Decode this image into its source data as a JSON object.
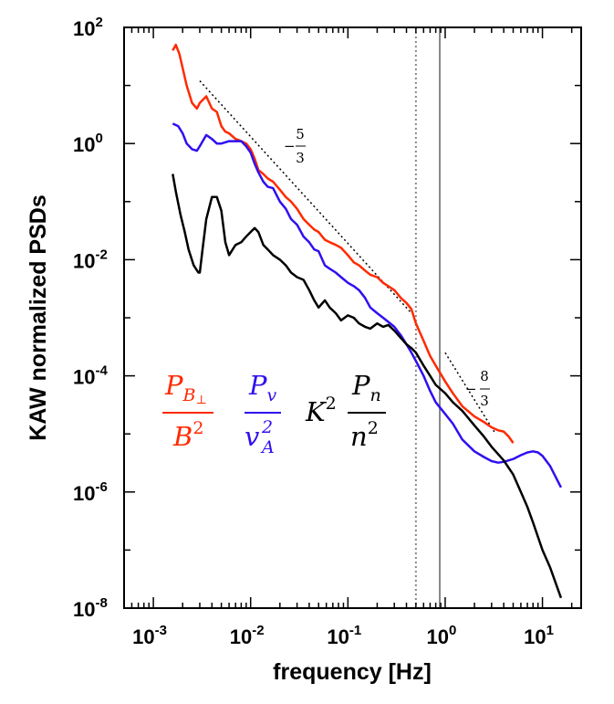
{
  "chart_data": {
    "type": "line",
    "x_scale": "log",
    "y_scale": "log",
    "xlabel": "frequency [Hz]",
    "ylabel": "KAW normalized PSDs",
    "xlim": [
      0.0005,
      25
    ],
    "ylim": [
      1e-08,
      100
    ],
    "x_ticks": [
      {
        "base": "10",
        "exp": "-3",
        "value": 0.001
      },
      {
        "base": "10",
        "exp": "-2",
        "value": 0.01
      },
      {
        "base": "10",
        "exp": "-1",
        "value": 0.1
      },
      {
        "base": "10",
        "exp": "0",
        "value": 1
      },
      {
        "base": "10",
        "exp": "1",
        "value": 10
      }
    ],
    "y_ticks": [
      {
        "base": "10",
        "exp": "2",
        "value": 100
      },
      {
        "base": "10",
        "exp": "0",
        "value": 1
      },
      {
        "base": "10",
        "exp": "-2",
        "value": 0.01
      },
      {
        "base": "10",
        "exp": "-4",
        "value": 0.0001
      },
      {
        "base": "10",
        "exp": "-6",
        "value": 1e-06
      },
      {
        "base": "10",
        "exp": "-8",
        "value": 1e-08
      }
    ],
    "series": [
      {
        "name": "P_B⊥ / B²",
        "color": "#ff2a00",
        "x": [
          0.00158,
          0.0017,
          0.00185,
          0.002,
          0.0022,
          0.0025,
          0.0028,
          0.003,
          0.0035,
          0.004,
          0.0045,
          0.005,
          0.0055,
          0.006,
          0.007,
          0.008,
          0.009,
          0.01,
          0.011,
          0.012,
          0.0135,
          0.015,
          0.017,
          0.02,
          0.023,
          0.026,
          0.03,
          0.035,
          0.04,
          0.045,
          0.05,
          0.058,
          0.065,
          0.075,
          0.085,
          0.1,
          0.115,
          0.13,
          0.15,
          0.17,
          0.2,
          0.23,
          0.26,
          0.3,
          0.35,
          0.4,
          0.45,
          0.5,
          0.6,
          0.7,
          0.8,
          1.0,
          1.2,
          1.5,
          2.0,
          2.5,
          3.0,
          3.5,
          4.0,
          4.5,
          5.0
        ],
        "y": [
          40,
          50,
          35,
          20,
          10,
          5,
          4,
          5,
          6.5,
          4,
          3.5,
          2,
          1.6,
          1.5,
          1.2,
          1.1,
          1.0,
          0.8,
          0.55,
          0.35,
          0.3,
          0.25,
          0.22,
          0.16,
          0.12,
          0.1,
          0.075,
          0.05,
          0.04,
          0.033,
          0.03,
          0.022,
          0.02,
          0.018,
          0.016,
          0.012,
          0.009,
          0.008,
          0.0065,
          0.0055,
          0.005,
          0.004,
          0.0035,
          0.003,
          0.0022,
          0.0018,
          0.0014,
          0.0008,
          0.0004,
          0.00022,
          0.00015,
          8e-05,
          5e-05,
          3e-05,
          2e-05,
          1.6e-05,
          1.3e-05,
          1.15e-05,
          1.1e-05,
          9e-06,
          7e-06
        ]
      },
      {
        "name": "P_v / v_A²",
        "color": "#2f10f0",
        "x": [
          0.00158,
          0.0018,
          0.002,
          0.0022,
          0.0025,
          0.0028,
          0.003,
          0.0035,
          0.004,
          0.0045,
          0.005,
          0.006,
          0.007,
          0.008,
          0.009,
          0.01,
          0.011,
          0.012,
          0.0135,
          0.015,
          0.017,
          0.02,
          0.023,
          0.026,
          0.03,
          0.035,
          0.04,
          0.045,
          0.05,
          0.058,
          0.065,
          0.075,
          0.085,
          0.1,
          0.115,
          0.13,
          0.15,
          0.17,
          0.2,
          0.23,
          0.26,
          0.3,
          0.35,
          0.4,
          0.45,
          0.5,
          0.6,
          0.7,
          0.8,
          1.0,
          1.2,
          1.5,
          2.0,
          2.5,
          3.0,
          3.5,
          4.0,
          5.0,
          6.0,
          7.0,
          8.0,
          9.0,
          10.0,
          12.0,
          15.5
        ],
        "y": [
          2.2,
          2.0,
          1.5,
          1.0,
          0.8,
          0.75,
          0.9,
          1.4,
          1.2,
          1.0,
          1.0,
          1.1,
          1.1,
          1.1,
          0.9,
          0.7,
          0.45,
          0.32,
          0.22,
          0.18,
          0.17,
          0.1,
          0.075,
          0.05,
          0.04,
          0.025,
          0.02,
          0.015,
          0.014,
          0.008,
          0.007,
          0.006,
          0.005,
          0.004,
          0.0035,
          0.003,
          0.0022,
          0.0015,
          0.0012,
          0.001,
          0.00085,
          0.0007,
          0.0005,
          0.00035,
          0.00025,
          0.00018,
          0.0001,
          5.5e-05,
          3.5e-05,
          2.2e-05,
          1.5e-05,
          8e-06,
          5e-06,
          4e-06,
          3.4e-06,
          3.2e-06,
          3.3e-06,
          3.7e-06,
          4.3e-06,
          4.8e-06,
          5e-06,
          4.8e-06,
          4.2e-06,
          2.8e-06,
          1.2e-06
        ]
      },
      {
        "name": "K² P_n / n²",
        "color": "#000000",
        "x": [
          0.00158,
          0.0017,
          0.0019,
          0.0021,
          0.0023,
          0.0026,
          0.0029,
          0.003,
          0.0032,
          0.0035,
          0.004,
          0.0045,
          0.005,
          0.0055,
          0.006,
          0.007,
          0.008,
          0.009,
          0.01,
          0.011,
          0.012,
          0.0135,
          0.015,
          0.017,
          0.02,
          0.023,
          0.026,
          0.03,
          0.035,
          0.04,
          0.045,
          0.05,
          0.058,
          0.065,
          0.075,
          0.085,
          0.1,
          0.115,
          0.13,
          0.15,
          0.17,
          0.2,
          0.23,
          0.26,
          0.3,
          0.35,
          0.4,
          0.45,
          0.5,
          0.6,
          0.7,
          0.8,
          1.0,
          1.2,
          1.5,
          2.0,
          2.5,
          3.0,
          4.0,
          5.0,
          6.0,
          7.0,
          8.0,
          10.0,
          12.0,
          15.5
        ],
        "y": [
          0.3,
          0.15,
          0.06,
          0.03,
          0.015,
          0.008,
          0.006,
          0.006,
          0.015,
          0.05,
          0.12,
          0.12,
          0.07,
          0.02,
          0.012,
          0.018,
          0.02,
          0.025,
          0.03,
          0.035,
          0.03,
          0.018,
          0.015,
          0.012,
          0.01,
          0.008,
          0.006,
          0.005,
          0.0045,
          0.003,
          0.002,
          0.0015,
          0.002,
          0.0015,
          0.0012,
          0.0009,
          0.0011,
          0.001,
          0.0008,
          0.0007,
          0.00065,
          0.0008,
          0.0007,
          0.00075,
          0.0006,
          0.00045,
          0.00035,
          0.0003,
          0.00025,
          0.00015,
          0.0001,
          7e-05,
          5e-05,
          3.5e-05,
          2.5e-05,
          1.4e-05,
          9e-06,
          6e-06,
          3.5e-06,
          2e-06,
          1e-06,
          5.5e-07,
          3e-07,
          1e-07,
          5e-08,
          1.5e-08
        ]
      }
    ],
    "reference_lines": [
      {
        "name": "slope -5/3 guide",
        "x": [
          0.003,
          0.45
        ],
        "y": [
          12,
          0.0012
        ]
      },
      {
        "name": "slope -8/3 guide",
        "x": [
          1.0,
          3.3
        ],
        "y": [
          0.00025,
          1e-05
        ]
      }
    ],
    "vertical_lines": [
      {
        "name": "dotted frequency marker",
        "x": 0.5,
        "style": "dotted"
      },
      {
        "name": "solid frequency marker",
        "x": 0.88,
        "style": "solid"
      }
    ],
    "annotations": [
      {
        "name": "slope-5-3",
        "sign": "−",
        "numerator": "5",
        "denominator": "3"
      },
      {
        "name": "slope-8-3",
        "sign": "−",
        "numerator": "8",
        "denominator": "3"
      }
    ],
    "legend": {
      "magnetic": {
        "numerator": "P",
        "num_sub": "B",
        "num_subsub": "⊥",
        "denominator": "B",
        "den_sup": "2",
        "color": "#ff2a00"
      },
      "velocity": {
        "numerator": "P",
        "num_sub": "v",
        "denominator": "v",
        "den_sup": "2",
        "den_sub": "A",
        "color": "#2f10f0"
      },
      "density": {
        "prefix": "K",
        "prefix_sup": "2",
        "numerator": "P",
        "num_sub": "n",
        "denominator": "n",
        "den_sup": "2",
        "color": "#000000"
      }
    }
  }
}
